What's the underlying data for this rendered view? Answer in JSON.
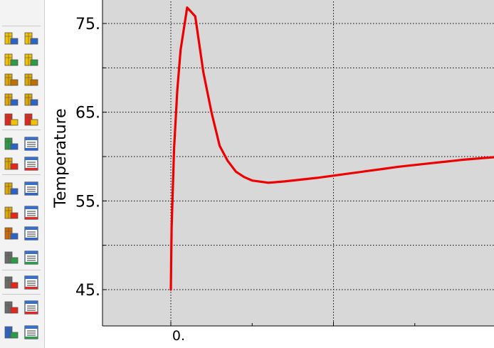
{
  "toolbar": {
    "buttons": [
      {
        "icon": "create-xy-plot-icon"
      },
      {
        "icon": "xy-data-manager-icon"
      },
      {
        "icon": "plot-undeformed-icon"
      },
      {
        "icon": "plot-deformed-icon"
      },
      {
        "icon": "plot-contours-icon"
      },
      {
        "icon": "contour-options-icon"
      },
      {
        "icon": "plot-symbols-icon"
      },
      {
        "icon": "symbol-options-icon"
      },
      {
        "icon": "plot-material-orientations-icon"
      },
      {
        "icon": "orientation-options-icon"
      },
      {
        "icon": "time-history-animation-icon"
      },
      {
        "icon": "scale-factor-animation-icon"
      },
      {
        "icon": "harmonic-animation-icon"
      },
      {
        "icon": "animation-options-icon"
      },
      {
        "icon": "view-cut-icon"
      },
      {
        "icon": "view-cut-manager-icon"
      },
      {
        "icon": "probe-values-icon"
      },
      {
        "icon": "report-options-icon"
      },
      {
        "icon": "path-icon"
      },
      {
        "icon": "create-xy-data-icon"
      },
      {
        "icon": "free-body-cut-icon"
      },
      {
        "icon": "free-body-manager-icon"
      },
      {
        "icon": "common-plot-options-icon"
      },
      {
        "icon": "common-options-manager-icon"
      },
      {
        "icon": "overlay-plot-icon"
      },
      {
        "icon": "overlay-manager-icon"
      },
      {
        "icon": "stream-plot-icon"
      },
      {
        "icon": "stream-manager-icon"
      }
    ]
  },
  "chart_data": {
    "type": "line",
    "title": "",
    "ylabel": "Temperature",
    "xlabel": "",
    "x_tick_labels": [
      "0."
    ],
    "y_tick_labels": [
      "45.",
      "55.",
      "65.",
      "75."
    ],
    "ylim": [
      41,
      79
    ],
    "grid": true,
    "series": [
      {
        "color": "#ee0000",
        "x": [
          0.0,
          0.05,
          0.2,
          0.4,
          0.6,
          1.0,
          1.5,
          2.0,
          2.5,
          3.0,
          3.5,
          4.0,
          4.5,
          5.0,
          6.0,
          7.0,
          8.0,
          9.0,
          10.0,
          11.0,
          12.0,
          13.0,
          14.0,
          15.0,
          16.0,
          17.0,
          18.0,
          19.0,
          20.0,
          20.5
        ],
        "y": [
          45.0,
          52.0,
          61.0,
          67.5,
          72.0,
          76.8,
          75.8,
          69.5,
          65.0,
          61.2,
          59.5,
          58.3,
          57.7,
          57.3,
          57.05,
          57.2,
          57.4,
          57.6,
          57.85,
          58.1,
          58.35,
          58.6,
          58.85,
          59.05,
          59.25,
          59.45,
          59.65,
          59.8,
          59.95,
          60.0
        ]
      }
    ]
  }
}
